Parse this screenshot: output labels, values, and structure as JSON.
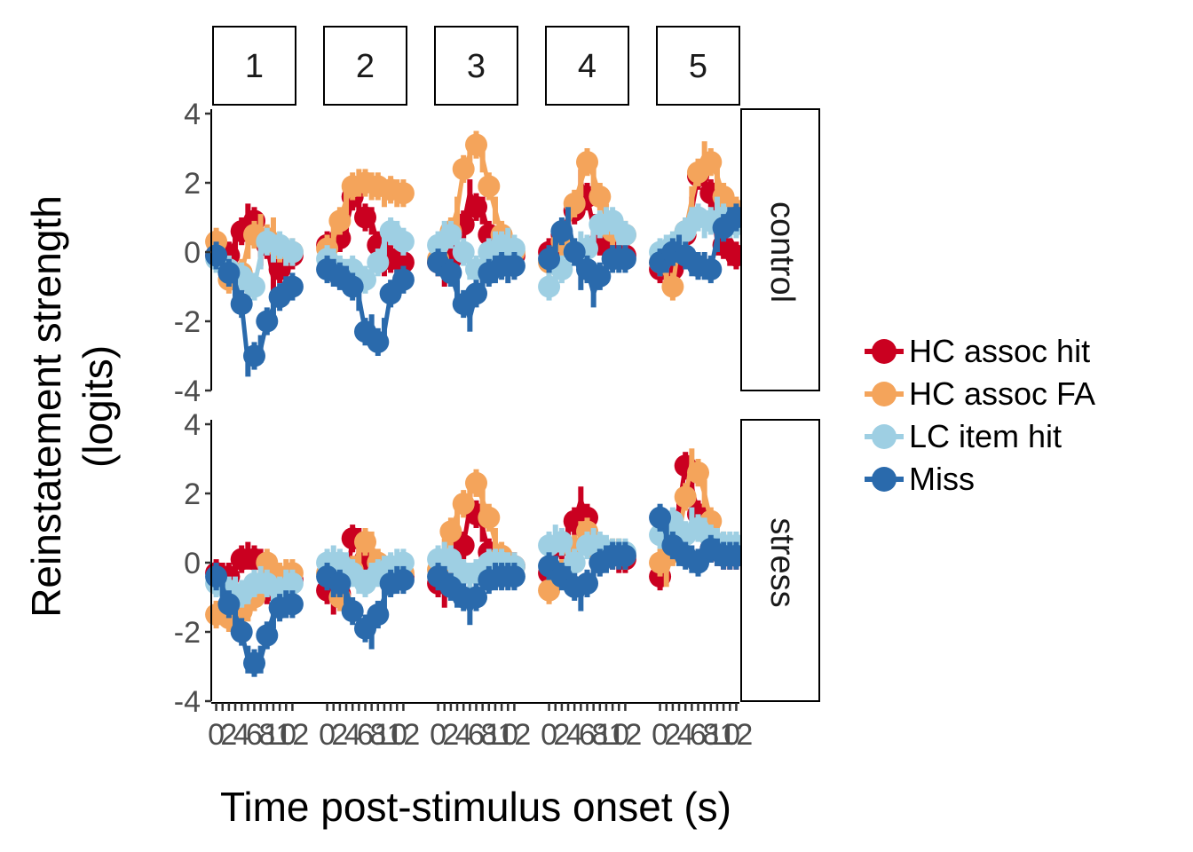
{
  "chart_data": {
    "type": "line",
    "xlabel": "Time post-stimulus onset (s)",
    "ylabel_lines": [
      "Reinstatement strength",
      "(logits)"
    ],
    "ylim": [
      -4,
      4
    ],
    "y_ticks": [
      4,
      2,
      0,
      -2,
      -4
    ],
    "y_tick_labels": [
      "4",
      "2",
      "0",
      "-2",
      "-4"
    ],
    "xlim": [
      -0.5,
      12.5
    ],
    "x_ticks": [
      0,
      1,
      2,
      3,
      4,
      5,
      6,
      7,
      8,
      9,
      10,
      11,
      12
    ],
    "x_tick_labels": [
      "0",
      "2",
      "4",
      "6",
      "8",
      "10",
      "12"
    ],
    "x_tick_label_values": [
      0,
      2,
      4,
      6,
      8,
      10,
      12
    ],
    "column_facets": [
      "1",
      "2",
      "3",
      "4",
      "5"
    ],
    "row_facets": [
      "control",
      "stress"
    ],
    "x": [
      0,
      1,
      2,
      3,
      4,
      5,
      6,
      7,
      8,
      9,
      10,
      11,
      12
    ],
    "series": [
      {
        "name": "HC assoc hit",
        "color": "#ca0020"
      },
      {
        "name": "HC assoc FA",
        "color": "#f4a45b"
      },
      {
        "name": "LC item hit",
        "color": "#9ecfe3"
      },
      {
        "name": "Miss",
        "color": "#2a6aac"
      }
    ],
    "panels": [
      {
        "row": "control",
        "col": "1",
        "values": {
          "HC assoc hit": [
            -0.1,
            -0.3,
            -0.1,
            0.3,
            0.6,
            1.0,
            0.9,
            0.0,
            0.2,
            -0.8,
            -0.5,
            -0.1,
            -0.1
          ],
          "HC assoc FA": [
            0.3,
            0.0,
            -0.8,
            -1.0,
            -0.6,
            0.2,
            0.5,
            0.7,
            0.4,
            0.6,
            0.1,
            0.0,
            0.0
          ],
          "LC item hit": [
            -0.2,
            -0.3,
            -0.5,
            -0.8,
            -0.7,
            -0.9,
            -1.0,
            -0.1,
            0.3,
            0.1,
            0.2,
            0.0,
            0.0
          ],
          "Miss": [
            -0.1,
            -0.3,
            -0.6,
            -0.9,
            -1.5,
            -3.2,
            -3.0,
            -2.8,
            -2.0,
            -1.6,
            -1.3,
            -1.1,
            -1.0
          ]
        }
      },
      {
        "row": "control",
        "col": "2",
        "values": {
          "HC assoc hit": [
            0.2,
            0.0,
            0.4,
            0.7,
            1.6,
            1.3,
            1.0,
            0.9,
            0.2,
            -0.3,
            -0.2,
            -0.2,
            -0.3
          ],
          "HC assoc FA": [
            0.1,
            0.4,
            0.9,
            1.5,
            1.9,
            2.0,
            2.0,
            1.9,
            1.9,
            1.7,
            1.8,
            1.7,
            1.7
          ],
          "LC item hit": [
            -0.2,
            -0.3,
            -0.5,
            -0.6,
            -0.5,
            -0.7,
            -0.8,
            -0.6,
            -0.3,
            0.3,
            0.6,
            0.5,
            0.3
          ],
          "Miss": [
            -0.5,
            -0.6,
            -0.7,
            -0.8,
            -1.0,
            -1.3,
            -2.3,
            -2.2,
            -2.6,
            -2.3,
            -1.2,
            -0.9,
            -0.8
          ]
        }
      },
      {
        "row": "control",
        "col": "3",
        "values": {
          "HC assoc hit": [
            -0.3,
            -0.6,
            -0.2,
            0.3,
            0.8,
            1.7,
            1.3,
            1.2,
            0.5,
            0.0,
            -0.1,
            -0.1,
            -0.1
          ],
          "HC assoc FA": [
            -0.2,
            0.2,
            0.6,
            1.2,
            2.4,
            2.8,
            3.1,
            2.7,
            1.9,
            1.2,
            0.5,
            0.1,
            0.0
          ],
          "LC item hit": [
            0.2,
            0.5,
            0.5,
            0.3,
            0.0,
            -0.4,
            -0.5,
            -0.2,
            0.0,
            0.2,
            0.2,
            0.3,
            0.1
          ],
          "Miss": [
            -0.3,
            -0.4,
            -0.6,
            -1.2,
            -1.5,
            -1.9,
            -1.2,
            -0.9,
            -0.6,
            -0.5,
            -0.4,
            -0.5,
            -0.4
          ]
        }
      },
      {
        "row": "control",
        "col": "4",
        "values": {
          "HC assoc hit": [
            0.0,
            0.2,
            0.5,
            1.0,
            1.2,
            2.0,
            1.6,
            0.7,
            0.3,
            0.0,
            0.0,
            0.0,
            -0.1
          ],
          "HC assoc FA": [
            -0.3,
            0.0,
            0.3,
            0.8,
            1.4,
            2.0,
            2.6,
            2.2,
            1.6,
            1.0,
            0.6,
            0.6,
            0.5
          ],
          "LC item hit": [
            -1.0,
            -0.8,
            -0.5,
            -0.3,
            0.0,
            0.2,
            0.1,
            0.5,
            0.8,
            0.9,
            0.9,
            0.6,
            0.5
          ],
          "Miss": [
            -0.2,
            0.2,
            0.6,
            0.9,
            0.0,
            -0.7,
            -0.5,
            -1.2,
            -0.7,
            -0.4,
            -0.2,
            -0.2,
            -0.2
          ]
        }
      },
      {
        "row": "control",
        "col": "5",
        "values": {
          "HC assoc hit": [
            -0.5,
            -0.6,
            -0.5,
            0.0,
            0.5,
            1.2,
            2.2,
            2.1,
            1.7,
            0.3,
            0.2,
            0.0,
            -0.1
          ],
          "HC assoc FA": [
            -0.3,
            -0.7,
            -1.0,
            0.3,
            0.6,
            1.5,
            2.3,
            2.8,
            2.6,
            2.2,
            1.6,
            1.3,
            1.2
          ],
          "LC item hit": [
            0.0,
            0.1,
            0.2,
            0.3,
            0.6,
            0.9,
            1.0,
            0.8,
            0.9,
            1.2,
            1.0,
            0.8,
            0.8
          ],
          "Miss": [
            -0.3,
            -0.2,
            0.0,
            0.1,
            -0.1,
            -0.3,
            -0.4,
            -0.4,
            -0.5,
            0.4,
            0.7,
            0.9,
            1.0
          ]
        }
      },
      {
        "row": "stress",
        "col": "1",
        "values": {
          "HC assoc hit": [
            -0.3,
            -0.4,
            -0.4,
            -0.2,
            0.1,
            0.2,
            0.1,
            0.0,
            -0.8,
            -0.8,
            -0.5,
            -0.5,
            -0.5
          ],
          "HC assoc FA": [
            -1.5,
            -1.4,
            -1.6,
            -1.3,
            -1.4,
            -1.3,
            -1.0,
            -0.5,
            0.0,
            -0.2,
            -0.4,
            -0.3,
            -0.3
          ],
          "LC item hit": [
            -0.6,
            -0.7,
            -0.8,
            -0.8,
            -0.9,
            -0.8,
            -0.6,
            -0.5,
            -0.6,
            -0.9,
            -0.8,
            -0.6,
            -0.6
          ],
          "Miss": [
            -0.4,
            -0.7,
            -1.2,
            -1.5,
            -2.0,
            -2.8,
            -2.9,
            -2.8,
            -2.1,
            -1.5,
            -1.3,
            -1.2,
            -1.2
          ]
        }
      },
      {
        "row": "stress",
        "col": "2",
        "values": {
          "HC assoc hit": [
            -0.8,
            -1.1,
            -0.9,
            -0.6,
            0.7,
            0.6,
            0.1,
            -0.1,
            -0.2,
            -0.5,
            -0.4,
            -0.4,
            -0.4
          ],
          "HC assoc FA": [
            -0.3,
            -0.8,
            -1.0,
            -0.6,
            -0.2,
            0.3,
            0.6,
            0.5,
            0.0,
            -0.2,
            -0.3,
            -0.3,
            -0.3
          ],
          "LC item hit": [
            0.0,
            0.1,
            0.0,
            -0.1,
            -0.3,
            -0.5,
            -0.6,
            -0.4,
            -0.3,
            -0.2,
            -0.1,
            0.0,
            0.0
          ],
          "Miss": [
            -0.4,
            -0.6,
            -0.6,
            -0.8,
            -1.4,
            -1.6,
            -1.9,
            -2.1,
            -1.5,
            -1.0,
            -0.6,
            -0.5,
            -0.5
          ]
        }
      },
      {
        "row": "stress",
        "col": "3",
        "values": {
          "HC assoc hit": [
            -0.6,
            -0.9,
            -0.5,
            0.2,
            0.5,
            1.6,
            1.4,
            1.0,
            0.3,
            -0.1,
            -0.1,
            -0.1,
            -0.1
          ],
          "HC assoc FA": [
            -0.2,
            0.3,
            0.9,
            1.4,
            1.7,
            2.0,
            2.3,
            1.8,
            1.3,
            0.6,
            0.2,
            0.0,
            -0.1
          ],
          "LC item hit": [
            0.1,
            0.2,
            0.1,
            -0.1,
            -0.3,
            -0.4,
            -0.3,
            -0.2,
            0.0,
            0.0,
            0.0,
            -0.1,
            -0.1
          ],
          "Miss": [
            -0.4,
            -0.5,
            -0.7,
            -0.9,
            -1.0,
            -1.4,
            -1.0,
            -0.7,
            -0.5,
            -0.4,
            -0.4,
            -0.4,
            -0.4
          ]
        }
      },
      {
        "row": "stress",
        "col": "4",
        "values": {
          "HC assoc hit": [
            -0.3,
            0.1,
            0.5,
            0.9,
            1.2,
            1.8,
            1.3,
            0.5,
            0.4,
            0.2,
            0.2,
            0.1,
            0.1
          ],
          "HC assoc FA": [
            -0.8,
            -0.6,
            -0.3,
            0.0,
            0.4,
            0.8,
            0.9,
            0.5,
            0.3,
            0.3,
            0.3,
            0.3,
            0.2
          ],
          "LC item hit": [
            0.5,
            0.7,
            0.6,
            0.3,
            0.0,
            0.3,
            0.5,
            0.6,
            0.5,
            0.4,
            0.3,
            0.3,
            0.3
          ],
          "Miss": [
            -0.1,
            -0.2,
            -0.4,
            -0.5,
            -0.7,
            -1.0,
            -0.6,
            -0.3,
            0.0,
            0.1,
            0.2,
            0.2,
            0.2
          ]
        }
      },
      {
        "row": "stress",
        "col": "5",
        "values": {
          "HC assoc hit": [
            -0.4,
            0.4,
            1.0,
            1.6,
            2.8,
            2.2,
            1.4,
            0.8,
            0.4,
            0.3,
            0.2,
            0.2,
            0.2
          ],
          "HC assoc FA": [
            0.0,
            -0.3,
            0.3,
            0.8,
            1.9,
            2.9,
            2.6,
            2.0,
            1.2,
            0.8,
            0.5,
            0.4,
            0.4
          ],
          "LC item hit": [
            0.8,
            1.0,
            1.2,
            1.0,
            0.8,
            1.2,
            1.0,
            0.9,
            0.7,
            0.6,
            0.5,
            0.5,
            0.5
          ],
          "Miss": [
            1.3,
            0.8,
            0.5,
            0.3,
            0.2,
            0.1,
            0.0,
            0.2,
            0.4,
            0.3,
            0.2,
            0.2,
            0.2
          ]
        }
      }
    ],
    "legend_position": "right",
    "grid": false
  }
}
